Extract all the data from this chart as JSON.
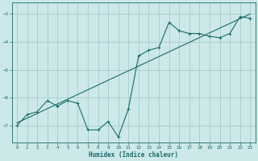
{
  "xlabel": "Humidex (Indice chaleur)",
  "bg_color": "#cce8e8",
  "grid_color": "#aad0d0",
  "line_color": "#1a6b6b",
  "xlim": [
    -0.5,
    23.5
  ],
  "ylim": [
    -7.6,
    -2.6
  ],
  "yticks": [
    -7,
    -6,
    -5,
    -4,
    -3
  ],
  "xticks": [
    0,
    1,
    2,
    3,
    4,
    5,
    6,
    7,
    8,
    9,
    10,
    11,
    12,
    13,
    14,
    15,
    16,
    17,
    18,
    19,
    20,
    21,
    22,
    23
  ],
  "data_x": [
    0,
    1,
    2,
    3,
    4,
    5,
    6,
    7,
    8,
    9,
    10,
    11,
    12,
    13,
    14,
    15,
    16,
    17,
    18,
    19,
    20,
    21,
    22,
    23
  ],
  "data_y": [
    -7.0,
    -6.6,
    -6.5,
    -6.1,
    -6.3,
    -6.1,
    -6.2,
    -7.15,
    -7.15,
    -6.85,
    -7.4,
    -6.4,
    -4.5,
    -4.3,
    -4.2,
    -3.3,
    -3.6,
    -3.7,
    -3.7,
    -3.8,
    -3.85,
    -3.7,
    -3.1,
    -3.15
  ],
  "trend_x": [
    0,
    23
  ],
  "trend_y": [
    -6.9,
    -3.0
  ]
}
